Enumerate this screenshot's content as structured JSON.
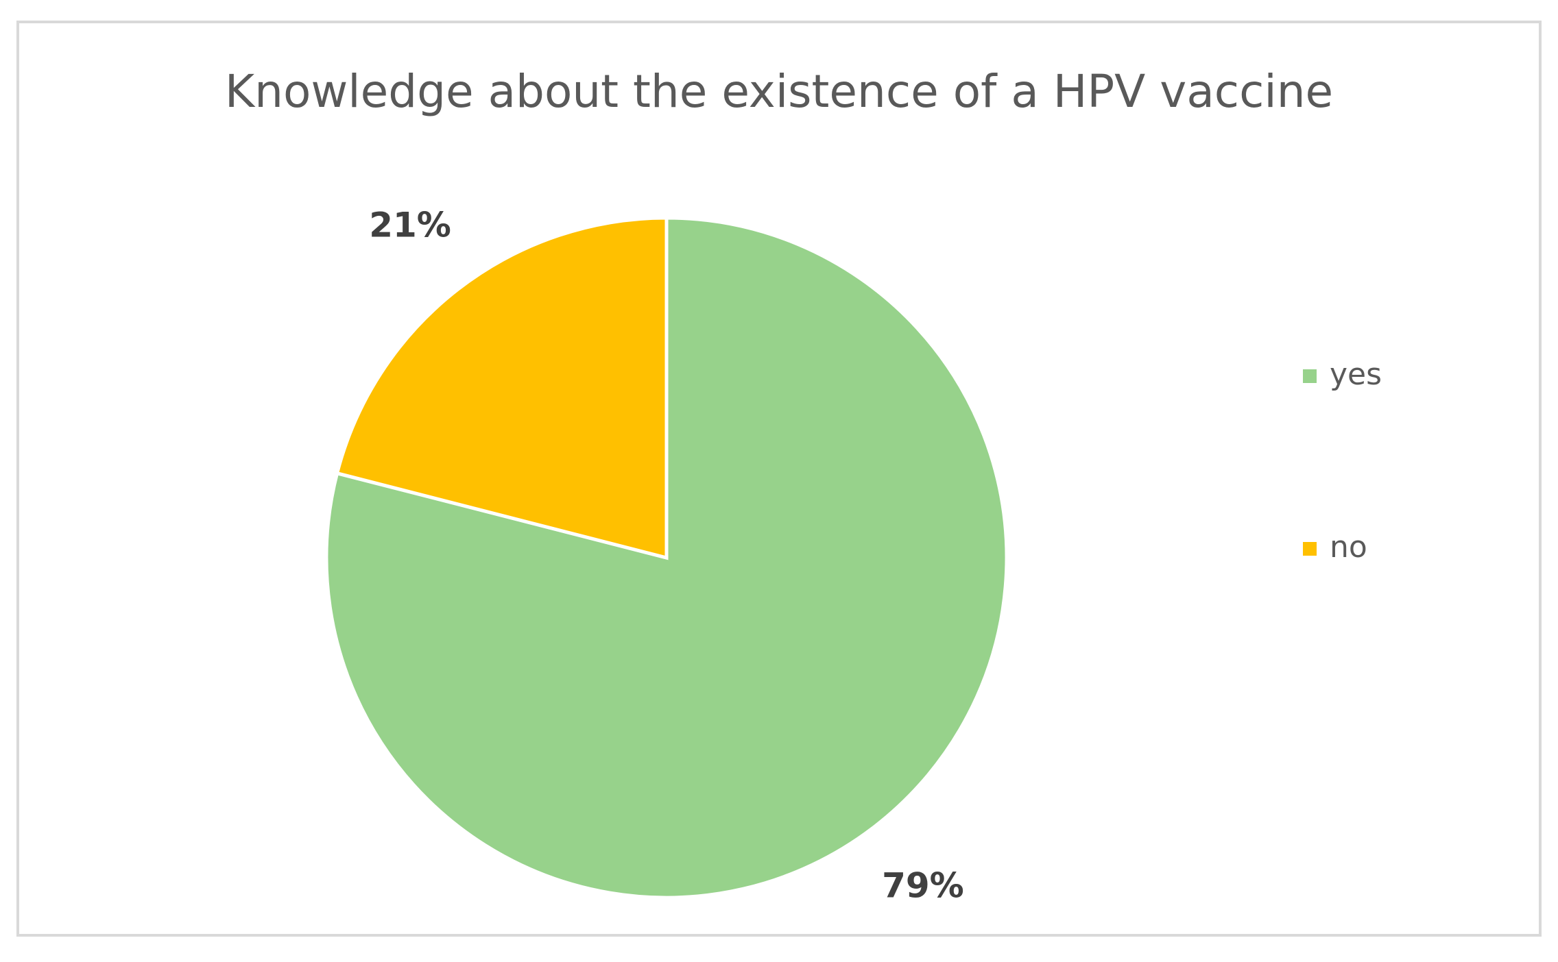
{
  "chart_data": {
    "type": "pie",
    "title": "Knowledge about the existence of a HPV vaccine",
    "categories": [
      "yes",
      "no"
    ],
    "values": [
      79,
      21
    ],
    "value_labels": [
      "79%",
      "21%"
    ],
    "colors": [
      "#97d28b",
      "#ffc000"
    ],
    "legend": "right"
  }
}
